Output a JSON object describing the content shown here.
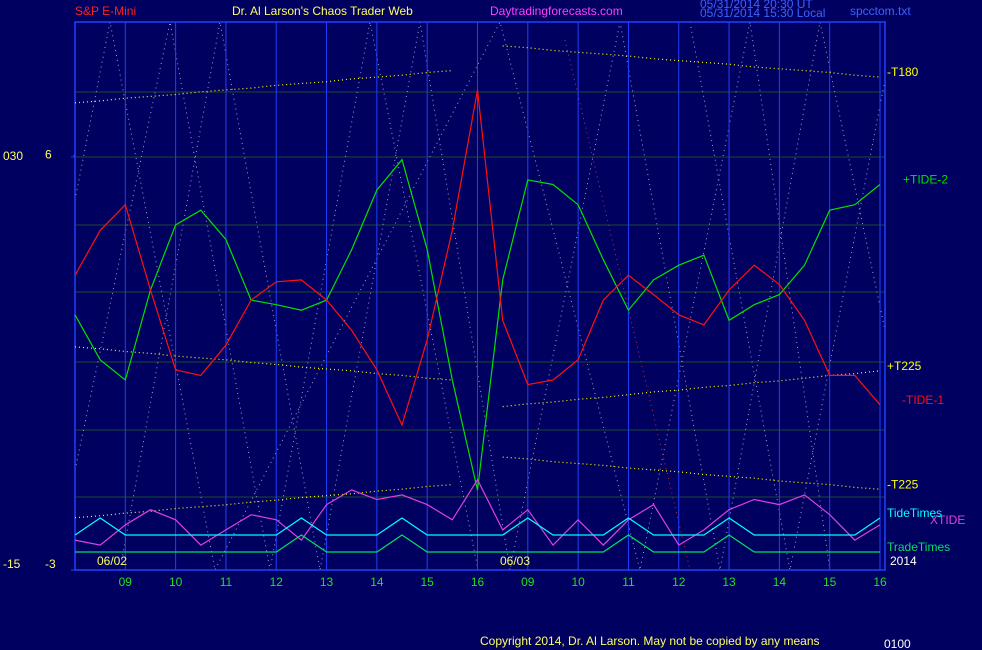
{
  "chart_data": {
    "type": "line",
    "title": "Dr. Al Larson's Chaos Trader Web",
    "annotations": [
      "S&P E-Mini",
      "Daytradingforecasts.com",
      "05/31/2014 20:30 UT",
      "05/31/2014 15:30 Local",
      "spcctom.txt",
      "06/02",
      "06/03",
      "2014",
      "Copyright 2014, Dr. Al Larson. May not be copied by any means",
      "0100"
    ],
    "categories": [
      null,
      null,
      "09",
      null,
      "10",
      null,
      "11",
      null,
      "12",
      null,
      "13",
      null,
      "14",
      null,
      "15",
      null,
      "16",
      null,
      "09",
      null,
      "10",
      null,
      "11",
      null,
      "12",
      null,
      "13",
      null,
      "14",
      null,
      "15",
      null,
      "16"
    ],
    "ylim": [
      -15,
      44.7
    ],
    "yticks": [
      -15,
      {
        "value": 30,
        "label": "030"
      }
    ],
    "y2lim": [
      -3,
      8.9
    ],
    "y2ticks": [
      -3,
      6
    ],
    "grid": true,
    "series": [
      {
        "name": "-T180",
        "color": "#ffff00",
        "style": "dotted",
        "values": [
          35.9,
          36.1,
          36.4,
          36.6,
          36.8,
          37.1,
          37.3,
          37.5,
          37.8,
          38.0,
          38.2,
          38.5,
          38.7,
          38.9,
          39.2,
          39.4,
          null,
          42.1,
          41.9,
          41.6,
          41.4,
          41.2,
          41.0,
          40.7,
          40.5,
          40.3,
          40.1,
          39.8,
          39.6,
          39.4,
          39.2,
          38.9,
          38.7
        ]
      },
      {
        "name": "+T225",
        "color": "#ffff00",
        "style": "dotted",
        "values": [
          9.3,
          9.1,
          8.8,
          8.6,
          8.3,
          8.1,
          7.9,
          7.6,
          7.4,
          7.1,
          6.9,
          6.7,
          6.4,
          6.2,
          5.9,
          5.7,
          null,
          2.8,
          3.1,
          3.3,
          3.6,
          3.8,
          4.1,
          4.4,
          4.6,
          4.9,
          5.1,
          5.4,
          5.6,
          5.9,
          6.2,
          6.4,
          6.7
        ]
      },
      {
        "name": "-T225",
        "color": "#ffff00",
        "style": "dotted",
        "values": [
          -9.3,
          -9.1,
          -8.8,
          -8.6,
          -8.3,
          -8.1,
          -7.9,
          -7.6,
          -7.4,
          -7.1,
          -6.9,
          -6.7,
          -6.4,
          -6.2,
          -5.9,
          -5.7,
          null,
          -2.7,
          -2.9,
          -3.2,
          -3.4,
          -3.6,
          -3.9,
          -4.1,
          -4.3,
          -4.6,
          -4.8,
          -5.0,
          -5.3,
          -5.5,
          -5.7,
          -6.0,
          -6.2
        ]
      },
      {
        "name": "+TIDE-2",
        "color": "#00e000",
        "values": [
          12.8,
          7.9,
          5.7,
          15.5,
          22.6,
          24.2,
          21.0,
          14.4,
          13.9,
          13.3,
          14.4,
          19.9,
          26.4,
          29.7,
          19.9,
          5.7,
          -6.3,
          16.6,
          27.5,
          27.0,
          24.8,
          18.8,
          13.3,
          16.6,
          18.2,
          19.3,
          12.2,
          13.9,
          15.0,
          18.2,
          24.2,
          24.8,
          27.0
        ]
      },
      {
        "name": "-TIDE-1",
        "color": "#ff1010",
        "values": [
          17.1,
          22.0,
          24.8,
          15.5,
          6.8,
          6.2,
          9.5,
          14.4,
          16.4,
          16.6,
          14.4,
          11.1,
          6.8,
          0.8,
          10.1,
          22.0,
          37.3,
          12.2,
          5.2,
          5.7,
          7.9,
          14.4,
          17.1,
          15.0,
          12.8,
          11.7,
          15.5,
          18.2,
          16.1,
          12.2,
          6.2,
          6.2,
          3.0
        ]
      },
      {
        "name": "XTIDE",
        "color": "#e040e0",
        "axis": "y2",
        "values": [
          -2.35,
          -2.46,
          -2.02,
          -1.69,
          -1.91,
          -2.46,
          -2.13,
          -1.8,
          -1.91,
          -2.35,
          -1.58,
          -1.26,
          -1.47,
          -1.37,
          -1.58,
          -1.91,
          -1.04,
          -2.13,
          -1.69,
          -2.46,
          -1.91,
          -2.46,
          -1.91,
          -1.58,
          -2.46,
          -2.13,
          -1.69,
          -1.47,
          -1.58,
          -1.37,
          -1.8,
          -2.35,
          -2.02
        ]
      },
      {
        "name": "TideTimes",
        "color": "#00ffff",
        "axis": "y2",
        "values": [
          -2.24,
          -1.87,
          -2.24,
          -2.24,
          -2.24,
          -2.24,
          -2.24,
          -2.24,
          -2.24,
          -1.87,
          -2.24,
          -2.24,
          -2.24,
          -1.87,
          -2.24,
          -2.24,
          -2.24,
          -2.24,
          -1.87,
          -2.24,
          -2.24,
          -2.24,
          -1.87,
          -2.24,
          -2.24,
          -2.24,
          -1.87,
          -2.24,
          -2.24,
          -2.24,
          -2.24,
          -2.24,
          -1.87
        ]
      },
      {
        "name": "TradeTimes",
        "color": "#00e060",
        "axis": "y2",
        "values": [
          -2.61,
          -2.61,
          -2.61,
          -2.61,
          -2.61,
          -2.61,
          -2.61,
          -2.61,
          -2.61,
          -2.24,
          -2.61,
          -2.61,
          -2.61,
          -2.24,
          -2.61,
          -2.61,
          -2.61,
          -2.61,
          -2.61,
          -2.61,
          -2.61,
          -2.61,
          -2.24,
          -2.61,
          -2.61,
          -2.61,
          -2.24,
          -2.61,
          -2.61,
          -2.61,
          -2.61,
          -2.61,
          -2.61
        ]
      }
    ]
  }
}
